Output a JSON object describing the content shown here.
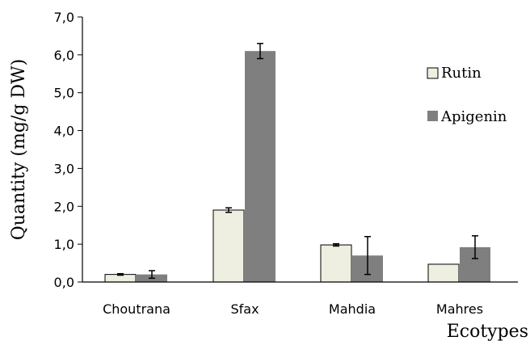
{
  "chart_data": {
    "type": "bar",
    "categories": [
      "Choutrana",
      "Sfax",
      "Mahdia",
      "Mahres"
    ],
    "series": [
      {
        "name": "Rutin",
        "values": [
          0.2,
          1.9,
          0.98,
          0.47
        ],
        "errors": [
          0.02,
          0.06,
          0.03,
          0.0
        ],
        "color": "#eeeee1"
      },
      {
        "name": "Apigenin",
        "values": [
          0.2,
          6.1,
          0.7,
          0.92
        ],
        "errors": [
          0.1,
          0.2,
          0.5,
          0.3
        ],
        "color": "#7f7f7f"
      }
    ],
    "xlabel": "Ecotypes",
    "ylabel": "Quantity (mg/g DW)",
    "ylim": [
      0,
      7
    ],
    "yticks": [
      0,
      1,
      2,
      3,
      4,
      5,
      6,
      7
    ],
    "ytick_labels": [
      "0,0",
      "1,0",
      "2,0",
      "3,0",
      "4,0",
      "5,0",
      "6,0",
      "7,0"
    ],
    "legend_position": "right",
    "grid": false
  }
}
